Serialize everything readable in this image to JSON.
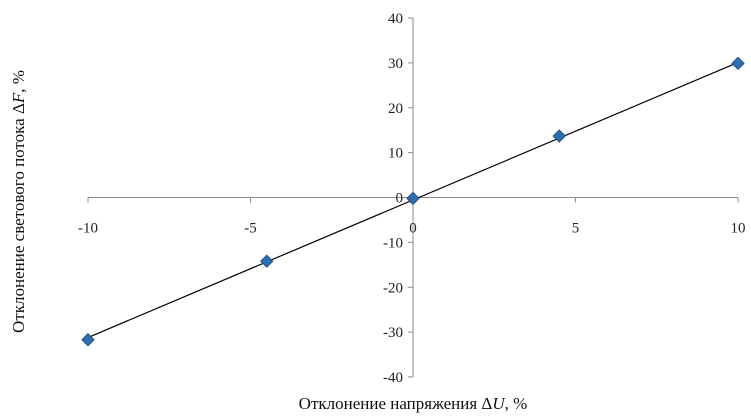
{
  "chart_data": {
    "type": "scatter",
    "title": "",
    "xlabel": "Отклонение напряжения ΔU, %",
    "xlabel_parts": {
      "prefix": "Отклонение напряжения Δ",
      "var": "U",
      "suffix": ", %"
    },
    "ylabel": "Отклонение светового потока ΔF, %",
    "ylabel_parts": {
      "prefix": "Отклонение светового потока Δ",
      "var": "F",
      "suffix": ", %"
    },
    "xlim": [
      -10,
      10
    ],
    "ylim": [
      -40,
      40
    ],
    "x_ticks": [
      -10,
      -5,
      0,
      5,
      10
    ],
    "y_ticks": [
      40,
      30,
      20,
      10,
      0,
      -10,
      -20,
      -30,
      -40
    ],
    "grid": false,
    "legend": "none",
    "axes_cross_at_origin": true,
    "series": [
      {
        "marker": "diamond",
        "color": "#2e6fb0",
        "x": [
          -10,
          -4.5,
          0,
          4.5,
          10
        ],
        "y": [
          -31.7,
          -14.2,
          -0.2,
          13.7,
          29.9
        ]
      }
    ],
    "trendline": {
      "type": "linear",
      "color": "#000000",
      "x": [
        -10,
        10
      ],
      "y": [
        -31.2,
        30.1
      ]
    }
  }
}
